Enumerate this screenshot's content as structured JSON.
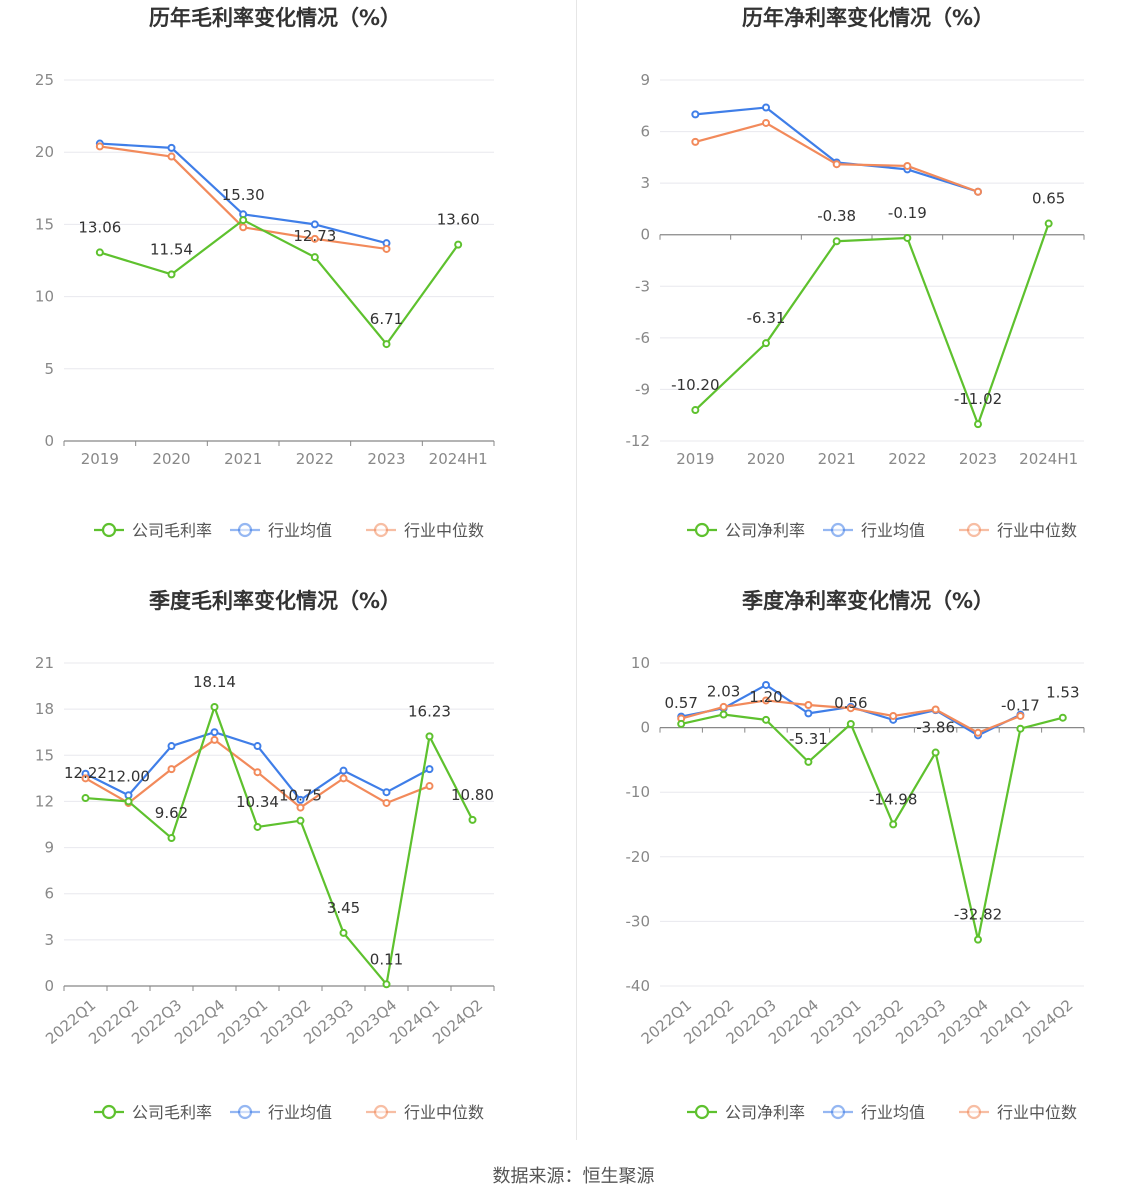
{
  "source_label": "数据来源：恒生聚源",
  "colors": {
    "company": "#5ec12e",
    "avg": "#3f7ee8",
    "median": "#f28a5b",
    "grid": "#e8e8ee",
    "axis": "#888888"
  },
  "chart_data": [
    {
      "type": "line",
      "title": "历年毛利率变化情况（%）",
      "categories": [
        "2019",
        "2020",
        "2021",
        "2022",
        "2023",
        "2024H1"
      ],
      "yticks": [
        "0",
        "5",
        "10",
        "15",
        "20",
        "25"
      ],
      "ylim": [
        0,
        25
      ],
      "legend": [
        "公司毛利率",
        "行业均值",
        "行业中位数"
      ],
      "series": [
        {
          "name": "公司毛利率",
          "key": "company",
          "values": [
            13.06,
            11.54,
            15.3,
            12.73,
            6.71,
            13.6
          ],
          "labels": [
            "13.06",
            "11.54",
            "15.30",
            "12.73",
            "6.71",
            "13.60"
          ]
        },
        {
          "name": "行业均值",
          "key": "avg",
          "values": [
            20.6,
            20.3,
            15.7,
            15.0,
            13.7,
            null
          ]
        },
        {
          "name": "行业中位数",
          "key": "median",
          "values": [
            20.4,
            19.7,
            14.8,
            14.0,
            13.3,
            null
          ]
        }
      ]
    },
    {
      "type": "line",
      "title": "历年净利率变化情况（%）",
      "categories": [
        "2019",
        "2020",
        "2021",
        "2022",
        "2023",
        "2024H1"
      ],
      "yticks": [
        "-12",
        "-9",
        "-6",
        "-3",
        "0",
        "3",
        "6",
        "9"
      ],
      "ylim": [
        -12,
        9
      ],
      "legend": [
        "公司净利率",
        "行业均值",
        "行业中位数"
      ],
      "series": [
        {
          "name": "公司净利率",
          "key": "company",
          "values": [
            -10.2,
            -6.31,
            -0.38,
            -0.19,
            -11.02,
            0.65
          ],
          "labels": [
            "-10.20",
            "-6.31",
            "-0.38",
            "-0.19",
            "-11.02",
            "0.65"
          ]
        },
        {
          "name": "行业均值",
          "key": "avg",
          "values": [
            7.0,
            7.4,
            4.2,
            3.8,
            2.5,
            null
          ]
        },
        {
          "name": "行业中位数",
          "key": "median",
          "values": [
            5.4,
            6.5,
            4.1,
            4.0,
            2.5,
            null
          ]
        }
      ]
    },
    {
      "type": "line",
      "title": "季度毛利率变化情况（%）",
      "categories": [
        "2022Q1",
        "2022Q2",
        "2022Q3",
        "2022Q4",
        "2023Q1",
        "2023Q2",
        "2023Q3",
        "2023Q4",
        "2024Q1",
        "2024Q2"
      ],
      "yticks": [
        "0",
        "3",
        "6",
        "9",
        "12",
        "15",
        "18",
        "21"
      ],
      "ylim": [
        0,
        21
      ],
      "legend": [
        "公司毛利率",
        "行业均值",
        "行业中位数"
      ],
      "series": [
        {
          "name": "公司毛利率",
          "key": "company",
          "values": [
            12.22,
            12.0,
            9.62,
            18.14,
            10.34,
            10.75,
            3.45,
            0.11,
            16.23,
            10.8
          ],
          "labels": [
            "12.22",
            "12.00",
            "9.62",
            "18.14",
            "10.34",
            "10.75",
            "3.45",
            "0.11",
            "16.23",
            "10.80"
          ]
        },
        {
          "name": "行业均值",
          "key": "avg",
          "values": [
            13.8,
            12.4,
            15.6,
            16.5,
            15.6,
            12.1,
            14.0,
            12.6,
            14.1,
            null
          ]
        },
        {
          "name": "行业中位数",
          "key": "median",
          "values": [
            13.5,
            11.9,
            14.1,
            16.0,
            13.9,
            11.6,
            13.5,
            11.9,
            13.0,
            null
          ]
        }
      ]
    },
    {
      "type": "line",
      "title": "季度净利率变化情况（%）",
      "categories": [
        "2022Q1",
        "2022Q2",
        "2022Q3",
        "2022Q4",
        "2023Q1",
        "2023Q2",
        "2023Q3",
        "2023Q4",
        "2024Q1",
        "2024Q2"
      ],
      "yticks": [
        "-40",
        "-30",
        "-20",
        "-10",
        "0",
        "10"
      ],
      "ylim": [
        -40,
        10
      ],
      "legend": [
        "公司净利率",
        "行业均值",
        "行业中位数"
      ],
      "series": [
        {
          "name": "公司净利率",
          "key": "company",
          "values": [
            0.57,
            2.03,
            1.2,
            -5.31,
            0.56,
            -14.98,
            -3.86,
            -32.82,
            -0.17,
            1.53
          ],
          "labels": [
            "0.57",
            "2.03",
            "1.20",
            "-5.31",
            "0.56",
            "-14.98",
            "-3.86",
            "-32.82",
            "-0.17",
            "1.53"
          ]
        },
        {
          "name": "行业均值",
          "key": "avg",
          "values": [
            1.7,
            3.0,
            6.6,
            2.2,
            3.2,
            1.2,
            2.7,
            -1.2,
            2.0,
            null
          ]
        },
        {
          "name": "行业中位数",
          "key": "median",
          "values": [
            1.4,
            3.2,
            4.2,
            3.5,
            3.0,
            1.8,
            2.8,
            -0.8,
            1.8,
            null
          ]
        }
      ]
    }
  ]
}
